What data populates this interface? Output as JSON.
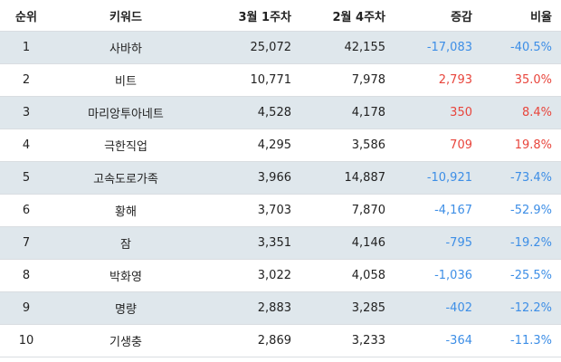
{
  "table": {
    "headers": [
      "순위",
      "키워드",
      "3월 1주차",
      "2월 4주차",
      "증감",
      "비율"
    ],
    "rows": [
      {
        "rank": "1",
        "keyword": "사바하",
        "mar_w1": "25,072",
        "feb_w4": "42,155",
        "diff": "-17,083",
        "rate": "-40.5%",
        "trend": "neg"
      },
      {
        "rank": "2",
        "keyword": "비트",
        "mar_w1": "10,771",
        "feb_w4": "7,978",
        "diff": "2,793",
        "rate": "35.0%",
        "trend": "pos"
      },
      {
        "rank": "3",
        "keyword": "마리앙투아네트",
        "mar_w1": "4,528",
        "feb_w4": "4,178",
        "diff": "350",
        "rate": "8.4%",
        "trend": "pos"
      },
      {
        "rank": "4",
        "keyword": "극한직업",
        "mar_w1": "4,295",
        "feb_w4": "3,586",
        "diff": "709",
        "rate": "19.8%",
        "trend": "pos"
      },
      {
        "rank": "5",
        "keyword": "고속도로가족",
        "mar_w1": "3,966",
        "feb_w4": "14,887",
        "diff": "-10,921",
        "rate": "-73.4%",
        "trend": "neg"
      },
      {
        "rank": "6",
        "keyword": "황해",
        "mar_w1": "3,703",
        "feb_w4": "7,870",
        "diff": "-4,167",
        "rate": "-52.9%",
        "trend": "neg"
      },
      {
        "rank": "7",
        "keyword": "잠",
        "mar_w1": "3,351",
        "feb_w4": "4,146",
        "diff": "-795",
        "rate": "-19.2%",
        "trend": "neg"
      },
      {
        "rank": "8",
        "keyword": "박화영",
        "mar_w1": "3,022",
        "feb_w4": "4,058",
        "diff": "-1,036",
        "rate": "-25.5%",
        "trend": "neg"
      },
      {
        "rank": "9",
        "keyword": "명량",
        "mar_w1": "2,883",
        "feb_w4": "3,285",
        "diff": "-402",
        "rate": "-12.2%",
        "trend": "neg"
      },
      {
        "rank": "10",
        "keyword": "기생충",
        "mar_w1": "2,869",
        "feb_w4": "3,233",
        "diff": "-364",
        "rate": "-11.3%",
        "trend": "neg"
      }
    ]
  },
  "colors": {
    "positive": "#e8453c",
    "negative": "#3d8ee6",
    "stripe": "#dfe7ec"
  }
}
